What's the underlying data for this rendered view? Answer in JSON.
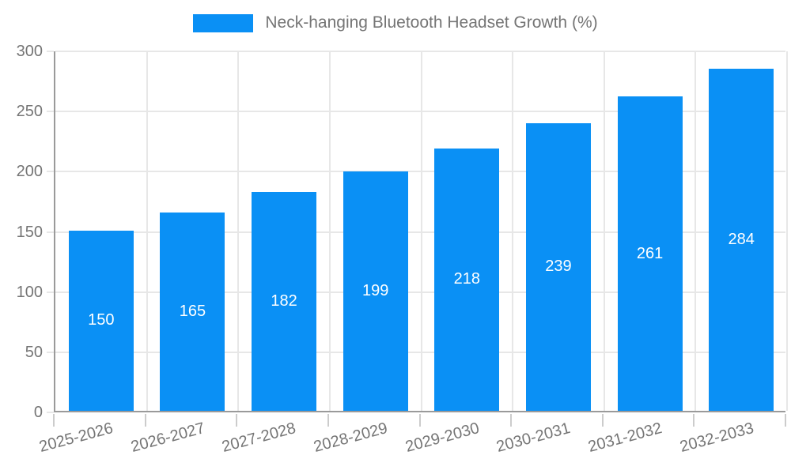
{
  "chart_data": {
    "type": "bar",
    "title": "Neck-hanging Bluetooth Headset Growth (%)",
    "categories": [
      "2025-2026",
      "2026-2027",
      "2027-2028",
      "2028-2029",
      "2029-2030",
      "2030-2031",
      "2031-2032",
      "2032-2033"
    ],
    "values": [
      150,
      165,
      182,
      199,
      218,
      239,
      261,
      284
    ],
    "xlabel": "",
    "ylabel": "",
    "ylim": [
      0,
      300
    ],
    "yticks": [
      0,
      50,
      100,
      150,
      200,
      250,
      300
    ],
    "grid": true,
    "legend_position": "top-center",
    "bar_color": "#0a90f5",
    "value_label_color": "#ffffff",
    "axis_text_color": "#757575",
    "axis_line_color": "#9a9a9a",
    "grid_line_color": "#e7e7e7"
  }
}
